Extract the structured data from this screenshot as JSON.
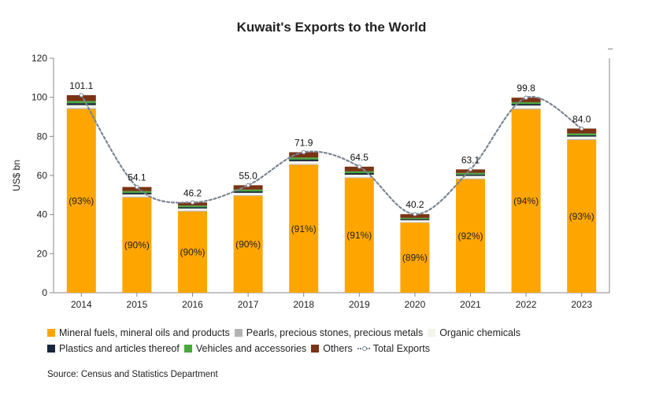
{
  "chart_data": {
    "type": "bar",
    "stacked": true,
    "title": "Kuwait's Exports to the World",
    "xlabel": "",
    "ylabel": "US$ bn",
    "ylim": [
      0,
      120
    ],
    "yticks": [
      0,
      20,
      40,
      60,
      80,
      100,
      120
    ],
    "categories": [
      "2014",
      "2015",
      "2016",
      "2017",
      "2018",
      "2019",
      "2020",
      "2021",
      "2022",
      "2023"
    ],
    "series": [
      {
        "name": "Mineral fuels, mineral oils and products",
        "color": "#FFA500",
        "values": [
          94.0,
          48.7,
          41.6,
          49.5,
          65.4,
          58.7,
          35.8,
          58.1,
          93.8,
          78.1
        ]
      },
      {
        "name": "Pearls, precious stones, precious metals",
        "color": "#B3B3B3",
        "values": [
          0.5,
          0.4,
          0.4,
          0.4,
          0.4,
          0.4,
          0.3,
          0.4,
          0.5,
          0.5
        ]
      },
      {
        "name": "Organic chemicals",
        "color": "#F4F4EC",
        "values": [
          1.5,
          1.2,
          1.1,
          1.2,
          1.5,
          1.3,
          1.0,
          1.3,
          1.5,
          1.3
        ]
      },
      {
        "name": "Plastics and articles thereof",
        "color": "#16283A",
        "values": [
          1.0,
          0.8,
          0.7,
          0.8,
          0.9,
          0.8,
          0.6,
          0.7,
          0.8,
          0.7
        ]
      },
      {
        "name": "Vehicles and accessories",
        "color": "#49A83C",
        "values": [
          1.1,
          0.9,
          0.8,
          0.9,
          1.0,
          0.9,
          0.6,
          0.8,
          0.9,
          0.9
        ]
      },
      {
        "name": "Others",
        "color": "#7A3314",
        "values": [
          3.0,
          2.1,
          1.6,
          2.2,
          2.7,
          2.4,
          1.9,
          1.8,
          2.3,
          2.5
        ]
      }
    ],
    "total_exports": {
      "name": "Total Exports",
      "color": "#7A8593",
      "values": [
        101.1,
        54.1,
        46.2,
        55.0,
        71.9,
        64.5,
        40.2,
        63.1,
        99.8,
        84.0
      ],
      "labels": [
        "101.1",
        "54.1",
        "46.2",
        "55.0",
        "71.9",
        "64.5",
        "40.2",
        "63.1",
        "99.8",
        "84.0"
      ]
    },
    "share_labels": [
      "(93%)",
      "(90%)",
      "(90%)",
      "(90%)",
      "(91%)",
      "(91%)",
      "(89%)",
      "(92%)",
      "(94%)",
      "(93%)"
    ],
    "legend_position": "bottom",
    "grid": false
  },
  "legend": {
    "row1": [
      "Mineral fuels, mineral oils and products",
      "Pearls, precious stones, precious metals",
      "Organic chemicals"
    ],
    "row2": [
      "Plastics and articles thereof",
      "Vehicles and accessories",
      "Others",
      "Total Exports"
    ]
  },
  "source": "Source: Census and Statistics Department",
  "corner_mark": "–"
}
